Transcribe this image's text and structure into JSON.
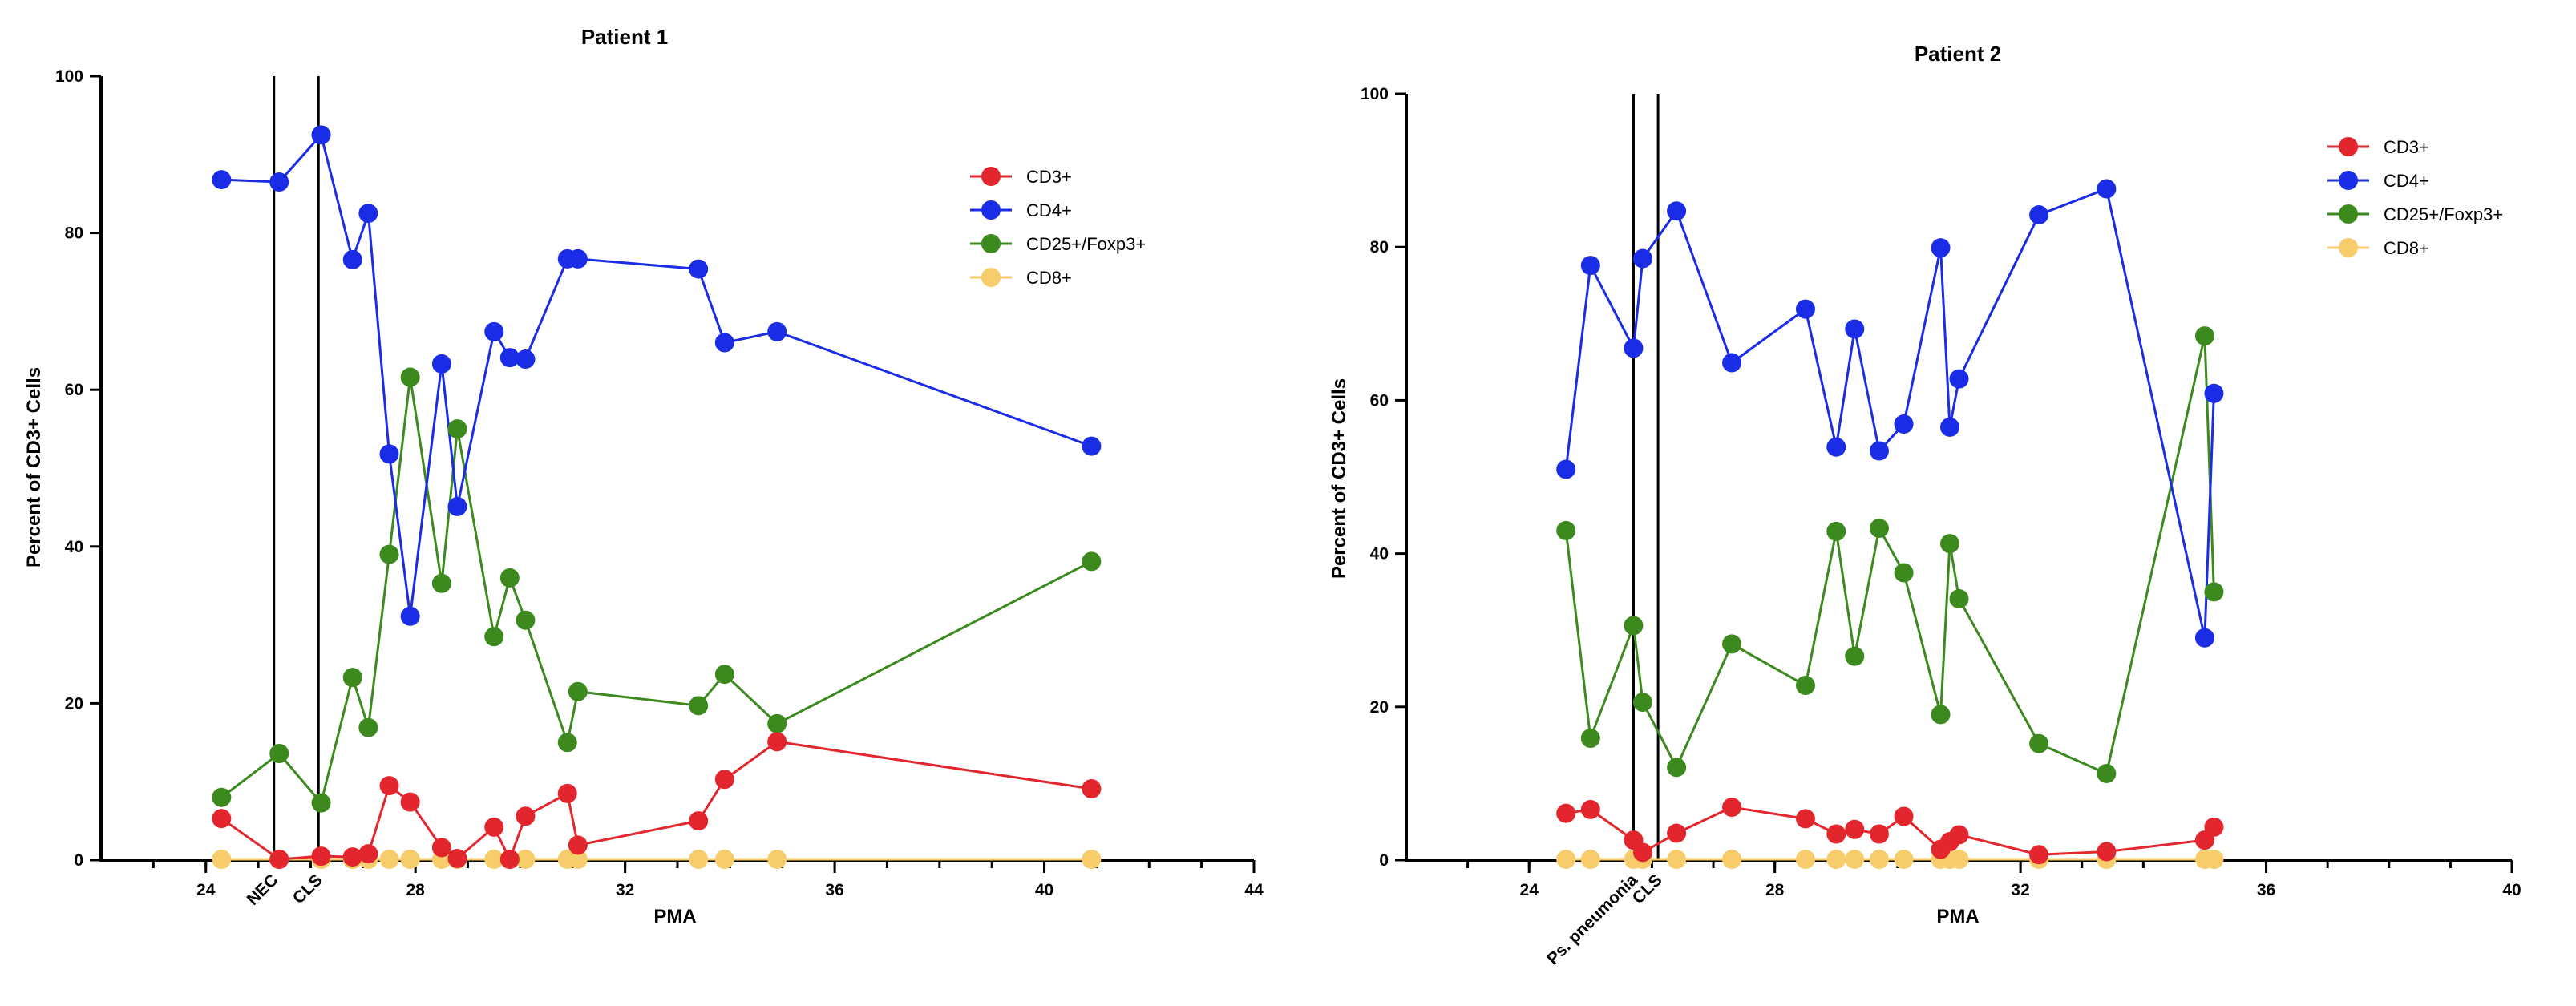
{
  "colors": {
    "CD3+": "#e3262d",
    "CD4+": "#1a2ce6",
    "CD25+/Foxp3+": "#3c8a1e",
    "CD8+": "#f7cd6b"
  },
  "chart_data": [
    {
      "type": "line",
      "title": "Patient 1",
      "xlabel": "PMA",
      "ylabel": "Percent of CD3+ Cells",
      "xlim": [
        22,
        44
      ],
      "ylim": [
        0,
        100
      ],
      "xticks": [
        24,
        28,
        32,
        36,
        40,
        44
      ],
      "yticks": [
        0,
        20,
        40,
        60,
        80,
        100
      ],
      "x_minor_step": 1,
      "legend_position": "top-right",
      "events": [
        {
          "x": 25.3,
          "label": "NEC"
        },
        {
          "x": 26.15,
          "label": "CLS"
        }
      ],
      "series": [
        {
          "name": "CD3+",
          "points": [
            [
              24.3,
              5.3
            ],
            [
              25.4,
              0.1
            ],
            [
              26.2,
              0.5
            ],
            [
              26.8,
              0.4
            ],
            [
              27.1,
              0.8
            ],
            [
              27.5,
              9.5
            ],
            [
              27.9,
              7.4
            ],
            [
              28.5,
              1.6
            ],
            [
              28.8,
              0.2
            ],
            [
              29.5,
              4.2
            ],
            [
              29.8,
              0.1
            ],
            [
              30.1,
              5.6
            ],
            [
              30.9,
              8.5
            ],
            [
              31.1,
              1.9
            ],
            [
              33.4,
              5.0
            ],
            [
              33.9,
              10.3
            ],
            [
              34.9,
              15.1
            ],
            [
              40.9,
              9.1
            ]
          ]
        },
        {
          "name": "CD4+",
          "points": [
            [
              24.3,
              86.8
            ],
            [
              25.4,
              86.5
            ],
            [
              26.2,
              92.5
            ],
            [
              26.8,
              76.6
            ],
            [
              27.1,
              82.5
            ],
            [
              27.5,
              51.8
            ],
            [
              27.9,
              31.1
            ],
            [
              28.5,
              63.3
            ],
            [
              28.8,
              45.1
            ],
            [
              29.5,
              67.4
            ],
            [
              29.8,
              64.1
            ],
            [
              30.1,
              63.9
            ],
            [
              30.9,
              76.7
            ],
            [
              31.1,
              76.7
            ],
            [
              33.4,
              75.4
            ],
            [
              33.9,
              66.0
            ],
            [
              34.9,
              67.4
            ],
            [
              40.9,
              52.8
            ]
          ]
        },
        {
          "name": "CD25+/Foxp3+",
          "points": [
            [
              24.3,
              8.0
            ],
            [
              25.4,
              13.6
            ],
            [
              26.2,
              7.3
            ],
            [
              26.8,
              23.3
            ],
            [
              27.1,
              16.9
            ],
            [
              27.5,
              39.0
            ],
            [
              27.9,
              61.6
            ],
            [
              28.5,
              35.3
            ],
            [
              28.8,
              55.0
            ],
            [
              29.5,
              28.5
            ],
            [
              29.8,
              36.0
            ],
            [
              30.1,
              30.6
            ],
            [
              30.9,
              15.0
            ],
            [
              31.1,
              21.5
            ],
            [
              33.4,
              19.7
            ],
            [
              33.9,
              23.7
            ],
            [
              34.9,
              17.4
            ],
            [
              40.9,
              38.1
            ]
          ]
        },
        {
          "name": "CD8+",
          "points": [
            [
              24.3,
              0.1
            ],
            [
              25.4,
              0.1
            ],
            [
              26.2,
              0.1
            ],
            [
              26.8,
              0.1
            ],
            [
              27.1,
              0.1
            ],
            [
              27.5,
              0.1
            ],
            [
              27.9,
              0.1
            ],
            [
              28.5,
              0.1
            ],
            [
              28.8,
              0.1
            ],
            [
              29.5,
              0.1
            ],
            [
              29.8,
              0.1
            ],
            [
              30.1,
              0.1
            ],
            [
              30.9,
              0.1
            ],
            [
              31.1,
              0.1
            ],
            [
              33.4,
              0.1
            ],
            [
              33.9,
              0.1
            ],
            [
              34.9,
              0.1
            ],
            [
              40.9,
              0.1
            ]
          ]
        }
      ]
    },
    {
      "type": "line",
      "title": "Patient 2",
      "xlabel": "PMA",
      "ylabel": "Percent of CD3+ Cells",
      "xlim": [
        22,
        40
      ],
      "ylim": [
        0,
        100
      ],
      "xticks": [
        24,
        28,
        32,
        36,
        40
      ],
      "yticks": [
        0,
        20,
        40,
        60,
        80,
        100
      ],
      "x_minor_step": 1,
      "legend_position": "top-right",
      "events": [
        {
          "x": 25.7,
          "label": "Ps. pneumonia"
        },
        {
          "x": 26.1,
          "label": "CLS"
        }
      ],
      "series": [
        {
          "name": "CD3+",
          "points": [
            [
              24.6,
              6.1
            ],
            [
              25.0,
              6.6
            ],
            [
              25.7,
              2.6
            ],
            [
              25.85,
              1.0
            ],
            [
              26.4,
              3.5
            ],
            [
              27.3,
              6.9
            ],
            [
              28.5,
              5.4
            ],
            [
              29.0,
              3.4
            ],
            [
              29.3,
              4.0
            ],
            [
              29.7,
              3.4
            ],
            [
              30.1,
              5.7
            ],
            [
              30.7,
              1.4
            ],
            [
              30.85,
              2.4
            ],
            [
              31.0,
              3.3
            ],
            [
              32.3,
              0.7
            ],
            [
              33.4,
              1.1
            ],
            [
              35.0,
              2.6
            ],
            [
              35.15,
              4.3
            ]
          ]
        },
        {
          "name": "CD4+",
          "points": [
            [
              24.6,
              51.0
            ],
            [
              25.0,
              77.6
            ],
            [
              25.7,
              66.8
            ],
            [
              25.85,
              78.5
            ],
            [
              26.4,
              84.7
            ],
            [
              27.3,
              64.9
            ],
            [
              28.5,
              71.9
            ],
            [
              29.0,
              53.9
            ],
            [
              29.3,
              69.3
            ],
            [
              29.7,
              53.4
            ],
            [
              30.1,
              56.9
            ],
            [
              30.7,
              79.9
            ],
            [
              30.85,
              56.5
            ],
            [
              31.0,
              62.8
            ],
            [
              32.3,
              84.2
            ],
            [
              33.4,
              87.6
            ],
            [
              35.0,
              29.0
            ],
            [
              35.15,
              60.9
            ]
          ]
        },
        {
          "name": "CD25+/Foxp3+",
          "points": [
            [
              24.6,
              43.0
            ],
            [
              25.0,
              15.9
            ],
            [
              25.7,
              30.6
            ],
            [
              25.85,
              20.6
            ],
            [
              26.4,
              12.1
            ],
            [
              27.3,
              28.2
            ],
            [
              28.5,
              22.8
            ],
            [
              29.0,
              42.9
            ],
            [
              29.3,
              26.6
            ],
            [
              29.7,
              43.3
            ],
            [
              30.1,
              37.5
            ],
            [
              30.7,
              19.0
            ],
            [
              30.85,
              41.3
            ],
            [
              31.0,
              34.1
            ],
            [
              32.3,
              15.2
            ],
            [
              33.4,
              11.3
            ],
            [
              35.0,
              68.4
            ],
            [
              35.15,
              35.0
            ]
          ]
        },
        {
          "name": "CD8+",
          "points": [
            [
              24.6,
              0.1
            ],
            [
              25.0,
              0.1
            ],
            [
              25.7,
              0.1
            ],
            [
              25.85,
              0.1
            ],
            [
              26.4,
              0.1
            ],
            [
              27.3,
              0.1
            ],
            [
              28.5,
              0.1
            ],
            [
              29.0,
              0.1
            ],
            [
              29.3,
              0.1
            ],
            [
              29.7,
              0.1
            ],
            [
              30.1,
              0.1
            ],
            [
              30.7,
              0.1
            ],
            [
              30.85,
              0.1
            ],
            [
              31.0,
              0.1
            ],
            [
              32.3,
              0.1
            ],
            [
              33.4,
              0.1
            ],
            [
              35.0,
              0.1
            ],
            [
              35.15,
              0.1
            ]
          ]
        }
      ]
    }
  ]
}
